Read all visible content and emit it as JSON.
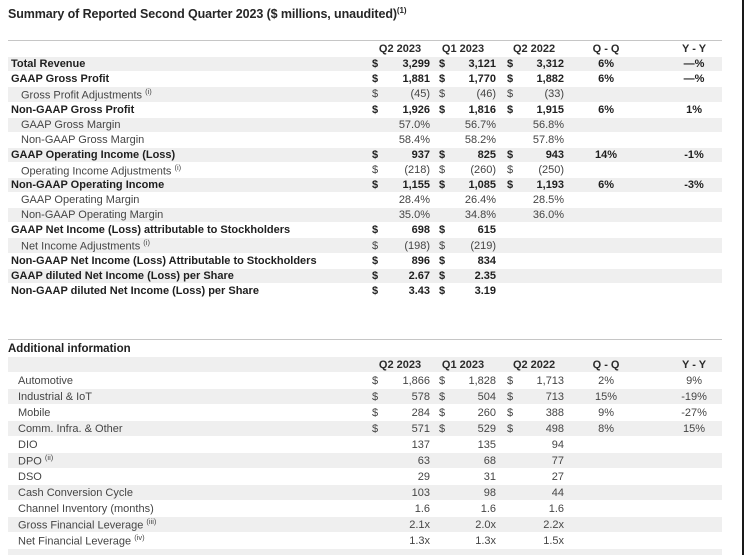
{
  "page": {
    "title": "Summary of Reported Second Quarter 2023 ($ millions, unaudited)",
    "title_sup": "(1)"
  },
  "columns": {
    "c1": "Q2 2023",
    "c2": "Q1 2023",
    "c3": "Q2 2022",
    "qq": "Q - Q",
    "yy": "Y - Y"
  },
  "summary_table": {
    "rows": [
      {
        "label": "Total Revenue",
        "style": "bold",
        "d1": "$",
        "v1": "3,299",
        "d2": "$",
        "v2": "3,121",
        "d3": "$",
        "v3": "3,312",
        "qq": "6%",
        "yy": "—%"
      },
      {
        "label": "GAAP Gross Profit",
        "style": "bold",
        "d1": "$",
        "v1": "1,881",
        "d2": "$",
        "v2": "1,770",
        "d3": "$",
        "v3": "1,882",
        "qq": "6%",
        "yy": "—%"
      },
      {
        "label": "Gross Profit Adjustments",
        "sup": "(i)",
        "style": "indent",
        "d1": "$",
        "v1": "(45)",
        "d2": "$",
        "v2": "(46)",
        "d3": "$",
        "v3": "(33)",
        "qq": "",
        "yy": ""
      },
      {
        "label": "Non-GAAP Gross Profit",
        "style": "bold",
        "d1": "$",
        "v1": "1,926",
        "d2": "$",
        "v2": "1,816",
        "d3": "$",
        "v3": "1,915",
        "qq": "6%",
        "yy": "1%"
      },
      {
        "label": "GAAP Gross Margin",
        "style": "indent",
        "d1": "",
        "v1": "57.0%",
        "d2": "",
        "v2": "56.7%",
        "d3": "",
        "v3": "56.8%",
        "qq": "",
        "yy": ""
      },
      {
        "label": "Non-GAAP Gross Margin",
        "style": "indent",
        "d1": "",
        "v1": "58.4%",
        "d2": "",
        "v2": "58.2%",
        "d3": "",
        "v3": "57.8%",
        "qq": "",
        "yy": ""
      },
      {
        "label": "GAAP Operating Income  (Loss)",
        "style": "bold",
        "d1": "$",
        "v1": "937",
        "d2": "$",
        "v2": "825",
        "d3": "$",
        "v3": "943",
        "qq": "14%",
        "yy": "-1%"
      },
      {
        "label": "Operating Income Adjustments",
        "sup": "(i)",
        "style": "indent",
        "d1": "$",
        "v1": "(218)",
        "d2": "$",
        "v2": "(260)",
        "d3": "$",
        "v3": "(250)",
        "qq": "",
        "yy": ""
      },
      {
        "label": "Non-GAAP Operating Income",
        "style": "bold",
        "d1": "$",
        "v1": "1,155",
        "d2": "$",
        "v2": "1,085",
        "d3": "$",
        "v3": "1,193",
        "qq": "6%",
        "yy": "-3%"
      },
      {
        "label": "GAAP Operating Margin",
        "style": "indent",
        "d1": "",
        "v1": "28.4%",
        "d2": "",
        "v2": "26.4%",
        "d3": "",
        "v3": "28.5%",
        "qq": "",
        "yy": ""
      },
      {
        "label": "Non-GAAP Operating Margin",
        "style": "indent",
        "d1": "",
        "v1": "35.0%",
        "d2": "",
        "v2": "34.8%",
        "d3": "",
        "v3": "36.0%",
        "qq": "",
        "yy": ""
      },
      {
        "label": "GAAP Net Income (Loss) attributable to Stockholders",
        "style": "bold",
        "d1": "$",
        "v1": "698",
        "d2": "$",
        "v2": "615",
        "d3": "",
        "v3": "",
        "qq": "",
        "yy": ""
      },
      {
        "label": "Net Income Adjustments",
        "sup": "(i)",
        "style": "indent",
        "d1": "$",
        "v1": "(198)",
        "d2": "$",
        "v2": "(219)",
        "d3": "",
        "v3": "",
        "qq": "",
        "yy": ""
      },
      {
        "label": "Non-GAAP Net Income (Loss) Attributable to Stockholders",
        "style": "bold",
        "d1": "$",
        "v1": "896",
        "d2": "$",
        "v2": "834",
        "d3": "",
        "v3": "",
        "qq": "",
        "yy": ""
      },
      {
        "label": "GAAP diluted Net Income (Loss) per Share",
        "style": "bold",
        "d1": "$",
        "v1": "2.67",
        "d2": "$",
        "v2": "2.35",
        "d3": "",
        "v3": "",
        "qq": "",
        "yy": ""
      },
      {
        "label": "Non-GAAP diluted Net Income (Loss) per Share",
        "style": "bold",
        "d1": "$",
        "v1": "3.43",
        "d2": "$",
        "v2": "3.19",
        "d3": "",
        "v3": "",
        "qq": "",
        "yy": ""
      }
    ]
  },
  "additional": {
    "heading": "Additional information",
    "rows": [
      {
        "label": "Automotive",
        "d1": "$",
        "v1": "1,866",
        "d2": "$",
        "v2": "1,828",
        "d3": "$",
        "v3": "1,713",
        "qq": "2%",
        "yy": "9%"
      },
      {
        "label": "Industrial & IoT",
        "d1": "$",
        "v1": "578",
        "d2": "$",
        "v2": "504",
        "d3": "$",
        "v3": "713",
        "qq": "15%",
        "yy": "-19%"
      },
      {
        "label": "Mobile",
        "d1": "$",
        "v1": "284",
        "d2": "$",
        "v2": "260",
        "d3": "$",
        "v3": "388",
        "qq": "9%",
        "yy": "-27%"
      },
      {
        "label": "Comm. Infra. & Other",
        "d1": "$",
        "v1": "571",
        "d2": "$",
        "v2": "529",
        "d3": "$",
        "v3": "498",
        "qq": "8%",
        "yy": "15%"
      },
      {
        "label": "DIO",
        "d1": "",
        "v1": "137",
        "d2": "",
        "v2": "135",
        "d3": "",
        "v3": "94",
        "qq": "",
        "yy": ""
      },
      {
        "label": "DPO",
        "sup": "(ii)",
        "d1": "",
        "v1": "63",
        "d2": "",
        "v2": "68",
        "d3": "",
        "v3": "77",
        "qq": "",
        "yy": ""
      },
      {
        "label": "DSO",
        "d1": "",
        "v1": "29",
        "d2": "",
        "v2": "31",
        "d3": "",
        "v3": "27",
        "qq": "",
        "yy": ""
      },
      {
        "label": "Cash Conversion Cycle",
        "d1": "",
        "v1": "103",
        "d2": "",
        "v2": "98",
        "d3": "",
        "v3": "44",
        "qq": "",
        "yy": ""
      },
      {
        "label": "Channel Inventory (months)",
        "d1": "",
        "v1": "1.6",
        "d2": "",
        "v2": "1.6",
        "d3": "",
        "v3": "1.6",
        "qq": "",
        "yy": ""
      },
      {
        "label": "Gross Financial Leverage",
        "sup": "(iii)",
        "d1": "",
        "v1": "2.1x",
        "d2": "",
        "v2": "2.0x",
        "d3": "",
        "v3": "2.2x",
        "qq": "",
        "yy": ""
      },
      {
        "label": "Net Financial Leverage",
        "sup": "(iv)",
        "d1": "",
        "v1": "1.3x",
        "d2": "",
        "v2": "1.3x",
        "d3": "",
        "v3": "1.5x",
        "qq": "",
        "yy": ""
      },
      {
        "label": "",
        "d1": "",
        "v1": "",
        "d2": "",
        "v2": "",
        "d3": "",
        "v3": "",
        "qq": "",
        "yy": ""
      }
    ]
  },
  "colors": {
    "row_shade": "#efefef",
    "rule_line": "#c6c6c6",
    "frame_edge": "#191919"
  }
}
